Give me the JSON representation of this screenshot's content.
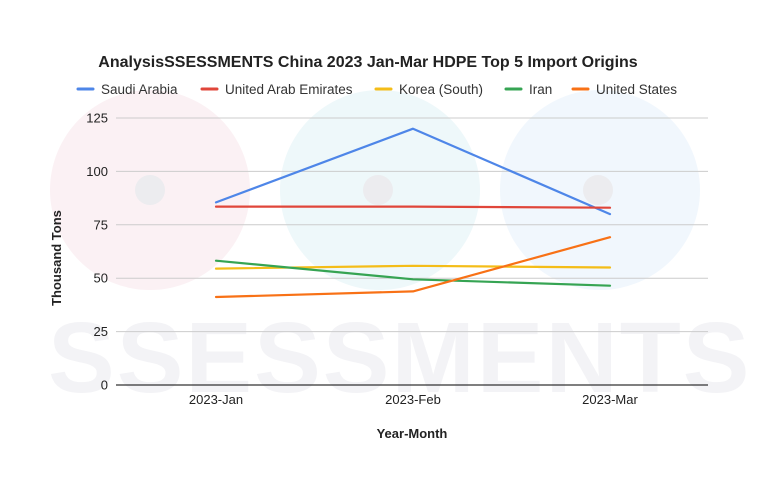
{
  "chart_data": {
    "type": "line",
    "title": "AnalysisSSESSMENTS China 2023 Jan-Mar HDPE Top 5 Import Origins",
    "xlabel": "Year-Month",
    "ylabel": "Thousand Tons",
    "categories": [
      "2023-Jan",
      "2023-Feb",
      "2023-Mar"
    ],
    "ylim": [
      0,
      125
    ],
    "yticks": [
      0,
      25,
      50,
      75,
      100,
      125
    ],
    "grid": true,
    "legend_position": "top",
    "series": [
      {
        "name": "Saudi Arabia",
        "color": "#4e86e8",
        "values": [
          85.5,
          120.0,
          80.0
        ]
      },
      {
        "name": "United Arab Emirates",
        "color": "#e0463a",
        "values": [
          83.5,
          83.5,
          83.0
        ]
      },
      {
        "name": "Korea (South)",
        "color": "#f4bd18",
        "values": [
          54.5,
          55.8,
          55.0
        ]
      },
      {
        "name": "Iran",
        "color": "#36a453",
        "values": [
          58.2,
          49.5,
          46.5
        ]
      },
      {
        "name": "United States",
        "color": "#f87116",
        "values": [
          41.2,
          43.8,
          69.2
        ]
      }
    ]
  },
  "watermark": {
    "text": "SSESSMENTS"
  }
}
